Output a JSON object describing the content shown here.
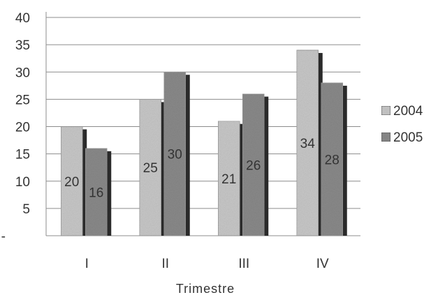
{
  "chart_data": {
    "type": "bar",
    "categories": [
      "I",
      "II",
      "III",
      "IV"
    ],
    "series": [
      {
        "name": "2004",
        "values": [
          20,
          25,
          21,
          34
        ],
        "color": "#c8c8c8",
        "shade": "#a8a8a8"
      },
      {
        "name": "2005",
        "values": [
          16,
          30,
          26,
          28
        ],
        "color": "#8a8a8a",
        "shade": "#6e6e6e"
      }
    ],
    "data_labels": [
      [
        "20",
        "25",
        "21",
        "34"
      ],
      [
        "16",
        "30",
        "26",
        "28"
      ]
    ],
    "y_ticks": [
      "-",
      "5",
      "10",
      "15",
      "20",
      "25",
      "30",
      "35",
      "40"
    ],
    "ylim": [
      0,
      40
    ],
    "xlabel": "Trimestre",
    "ylabel": "",
    "title": "",
    "grid": true,
    "legend_position": "right"
  }
}
